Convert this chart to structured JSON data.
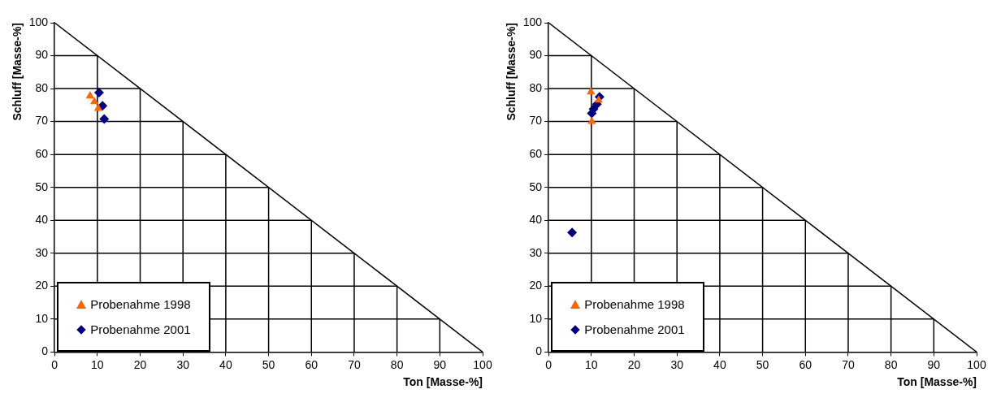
{
  "chart_data": [
    {
      "type": "scatter",
      "xlabel": "Ton [Masse-%]",
      "ylabel": "Schluff [Masse-%]",
      "xlim": [
        0,
        100
      ],
      "ylim": [
        0,
        100
      ],
      "xticks": [
        0,
        10,
        20,
        30,
        40,
        50,
        60,
        70,
        80,
        90,
        100
      ],
      "yticks": [
        0,
        10,
        20,
        30,
        40,
        50,
        60,
        70,
        80,
        90,
        100
      ],
      "legend": "bottom left",
      "series": [
        {
          "name": "Probenahme 1998",
          "color": "#ff6600",
          "marker": "triangle",
          "x": [
            8.3,
            9.3,
            10.2
          ],
          "values": [
            77.8,
            76,
            74
          ]
        },
        {
          "name": "Probenahme 2001",
          "color": "#000080",
          "marker": "diamond",
          "x": [
            10.4,
            11.2,
            11.6
          ],
          "values": [
            78.8,
            74.8,
            70.8
          ]
        },
        {
          "type": "line",
          "color": "#000000",
          "marker": "none",
          "x": [
            0,
            100
          ],
          "values": [
            100,
            0
          ]
        },
        {
          "type": "line",
          "color": "#000000",
          "marker": "none",
          "x": [
            10,
            10
          ],
          "values": [
            0,
            90
          ]
        },
        {
          "type": "line",
          "color": "#000000",
          "marker": "none",
          "x": [
            20,
            20
          ],
          "values": [
            0,
            80
          ]
        },
        {
          "type": "line",
          "color": "#000000",
          "marker": "none",
          "x": [
            30,
            30
          ],
          "values": [
            0,
            70
          ]
        },
        {
          "type": "line",
          "color": "#000000",
          "marker": "none",
          "x": [
            40,
            40
          ],
          "values": [
            0,
            60
          ]
        },
        {
          "type": "line",
          "color": "#000000",
          "marker": "none",
          "x": [
            50,
            50
          ],
          "values": [
            0,
            50
          ]
        },
        {
          "type": "line",
          "color": "#000000",
          "marker": "none",
          "x": [
            60,
            60
          ],
          "values": [
            0,
            40
          ]
        },
        {
          "type": "line",
          "color": "#000000",
          "marker": "none",
          "x": [
            70,
            70
          ],
          "values": [
            0,
            30
          ]
        },
        {
          "type": "line",
          "color": "#000000",
          "marker": "none",
          "x": [
            80,
            80
          ],
          "values": [
            0,
            20
          ]
        },
        {
          "type": "line",
          "color": "#000000",
          "marker": "none",
          "x": [
            90,
            90
          ],
          "values": [
            0,
            10
          ]
        },
        {
          "type": "line",
          "color": "#000000",
          "marker": "none",
          "x": [
            0,
            90
          ],
          "values": [
            10,
            10
          ]
        },
        {
          "type": "line",
          "color": "#000000",
          "marker": "none",
          "x": [
            0,
            80
          ],
          "values": [
            20,
            20
          ]
        },
        {
          "type": "line",
          "color": "#000000",
          "marker": "none",
          "x": [
            0,
            70
          ],
          "values": [
            30,
            30
          ]
        },
        {
          "type": "line",
          "color": "#000000",
          "marker": "none",
          "x": [
            0,
            60
          ],
          "values": [
            40,
            40
          ]
        },
        {
          "type": "line",
          "color": "#000000",
          "marker": "none",
          "x": [
            0,
            50
          ],
          "values": [
            50,
            50
          ]
        },
        {
          "type": "line",
          "color": "#000000",
          "marker": "none",
          "x": [
            0,
            40
          ],
          "values": [
            60,
            60
          ]
        },
        {
          "type": "line",
          "color": "#000000",
          "marker": "none",
          "x": [
            0,
            30
          ],
          "values": [
            70,
            70
          ]
        },
        {
          "type": "line",
          "color": "#000000",
          "marker": "none",
          "x": [
            0,
            20
          ],
          "values": [
            80,
            80
          ]
        },
        {
          "type": "line",
          "color": "#000000",
          "marker": "none",
          "x": [
            0,
            10
          ],
          "values": [
            90,
            90
          ]
        }
      ]
    },
    {
      "type": "scatter",
      "xlabel": "Ton [Masse-%]",
      "ylabel": "Schluff [Masse-%]",
      "xlim": [
        0,
        100
      ],
      "ylim": [
        0,
        100
      ],
      "xticks": [
        0,
        10,
        20,
        30,
        40,
        50,
        60,
        70,
        80,
        90,
        100
      ],
      "yticks": [
        0,
        10,
        20,
        30,
        40,
        50,
        60,
        70,
        80,
        90,
        100
      ],
      "legend": "bottom left",
      "series": [
        {
          "name": "Probenahme 1998",
          "color": "#ff6600",
          "marker": "triangle",
          "x": [
            9.9,
            10.1,
            11.7
          ],
          "values": [
            79,
            70,
            76.5
          ]
        },
        {
          "name": "Probenahme 2001",
          "color": "#000080",
          "marker": "diamond",
          "x": [
            11.9,
            11.3,
            10.5,
            10.1,
            5.5
          ],
          "values": [
            77.5,
            75.3,
            73.8,
            72.5,
            36.3
          ]
        },
        {
          "type": "line",
          "color": "#000000",
          "marker": "none",
          "x": [
            0,
            100
          ],
          "values": [
            100,
            0
          ]
        },
        {
          "type": "line",
          "color": "#000000",
          "marker": "none",
          "x": [
            10,
            10
          ],
          "values": [
            0,
            90
          ]
        },
        {
          "type": "line",
          "color": "#000000",
          "marker": "none",
          "x": [
            20,
            20
          ],
          "values": [
            0,
            80
          ]
        },
        {
          "type": "line",
          "color": "#000000",
          "marker": "none",
          "x": [
            30,
            30
          ],
          "values": [
            0,
            70
          ]
        },
        {
          "type": "line",
          "color": "#000000",
          "marker": "none",
          "x": [
            40,
            40
          ],
          "values": [
            0,
            60
          ]
        },
        {
          "type": "line",
          "color": "#000000",
          "marker": "none",
          "x": [
            50,
            50
          ],
          "values": [
            0,
            50
          ]
        },
        {
          "type": "line",
          "color": "#000000",
          "marker": "none",
          "x": [
            60,
            60
          ],
          "values": [
            0,
            40
          ]
        },
        {
          "type": "line",
          "color": "#000000",
          "marker": "none",
          "x": [
            70,
            70
          ],
          "values": [
            0,
            30
          ]
        },
        {
          "type": "line",
          "color": "#000000",
          "marker": "none",
          "x": [
            80,
            80
          ],
          "values": [
            0,
            20
          ]
        },
        {
          "type": "line",
          "color": "#000000",
          "marker": "none",
          "x": [
            90,
            90
          ],
          "values": [
            0,
            10
          ]
        },
        {
          "type": "line",
          "color": "#000000",
          "marker": "none",
          "x": [
            0,
            90
          ],
          "values": [
            10,
            10
          ]
        },
        {
          "type": "line",
          "color": "#000000",
          "marker": "none",
          "x": [
            0,
            80
          ],
          "values": [
            20,
            20
          ]
        },
        {
          "type": "line",
          "color": "#000000",
          "marker": "none",
          "x": [
            0,
            70
          ],
          "values": [
            30,
            30
          ]
        },
        {
          "type": "line",
          "color": "#000000",
          "marker": "none",
          "x": [
            0,
            60
          ],
          "values": [
            40,
            40
          ]
        },
        {
          "type": "line",
          "color": "#000000",
          "marker": "none",
          "x": [
            0,
            50
          ],
          "values": [
            50,
            50
          ]
        },
        {
          "type": "line",
          "color": "#000000",
          "marker": "none",
          "x": [
            0,
            40
          ],
          "values": [
            60,
            60
          ]
        },
        {
          "type": "line",
          "color": "#000000",
          "marker": "none",
          "x": [
            0,
            30
          ],
          "values": [
            70,
            70
          ]
        },
        {
          "type": "line",
          "color": "#000000",
          "marker": "none",
          "x": [
            0,
            20
          ],
          "values": [
            80,
            80
          ]
        },
        {
          "type": "line",
          "color": "#000000",
          "marker": "none",
          "x": [
            0,
            10
          ],
          "values": [
            90,
            90
          ]
        }
      ]
    }
  ]
}
